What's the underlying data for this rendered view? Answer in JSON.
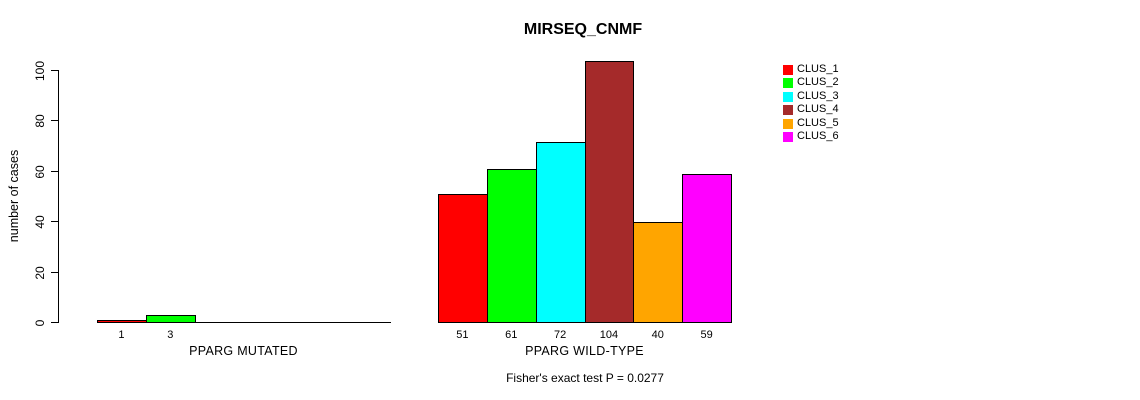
{
  "title": "MIRSEQ_CNMF",
  "chart_data": {
    "type": "bar",
    "title": "MIRSEQ_CNMF",
    "xlabel": "",
    "ylabel": "number of cases",
    "ylim": [
      0,
      100
    ],
    "yticks": [
      0,
      20,
      40,
      60,
      80,
      100
    ],
    "grid": false,
    "legend_position": "right",
    "annotation": "Fisher's exact test P = 0.0277",
    "clusters": [
      {
        "name": "CLUS_1",
        "color": "#FF0000"
      },
      {
        "name": "CLUS_2",
        "color": "#00FF00"
      },
      {
        "name": "CLUS_3",
        "color": "#00FFFF"
      },
      {
        "name": "CLUS_4",
        "color": "#A52A2A"
      },
      {
        "name": "CLUS_5",
        "color": "#FFA500"
      },
      {
        "name": "CLUS_6",
        "color": "#FF00FF"
      }
    ],
    "categories": [
      "PPARG MUTATED",
      "PPARG WILD-TYPE"
    ],
    "groups": [
      {
        "label": "PPARG MUTATED",
        "values": [
          1,
          3,
          0,
          0,
          0,
          0
        ]
      },
      {
        "label": "PPARG WILD-TYPE",
        "values": [
          51,
          61,
          72,
          104,
          40,
          59
        ]
      }
    ]
  }
}
